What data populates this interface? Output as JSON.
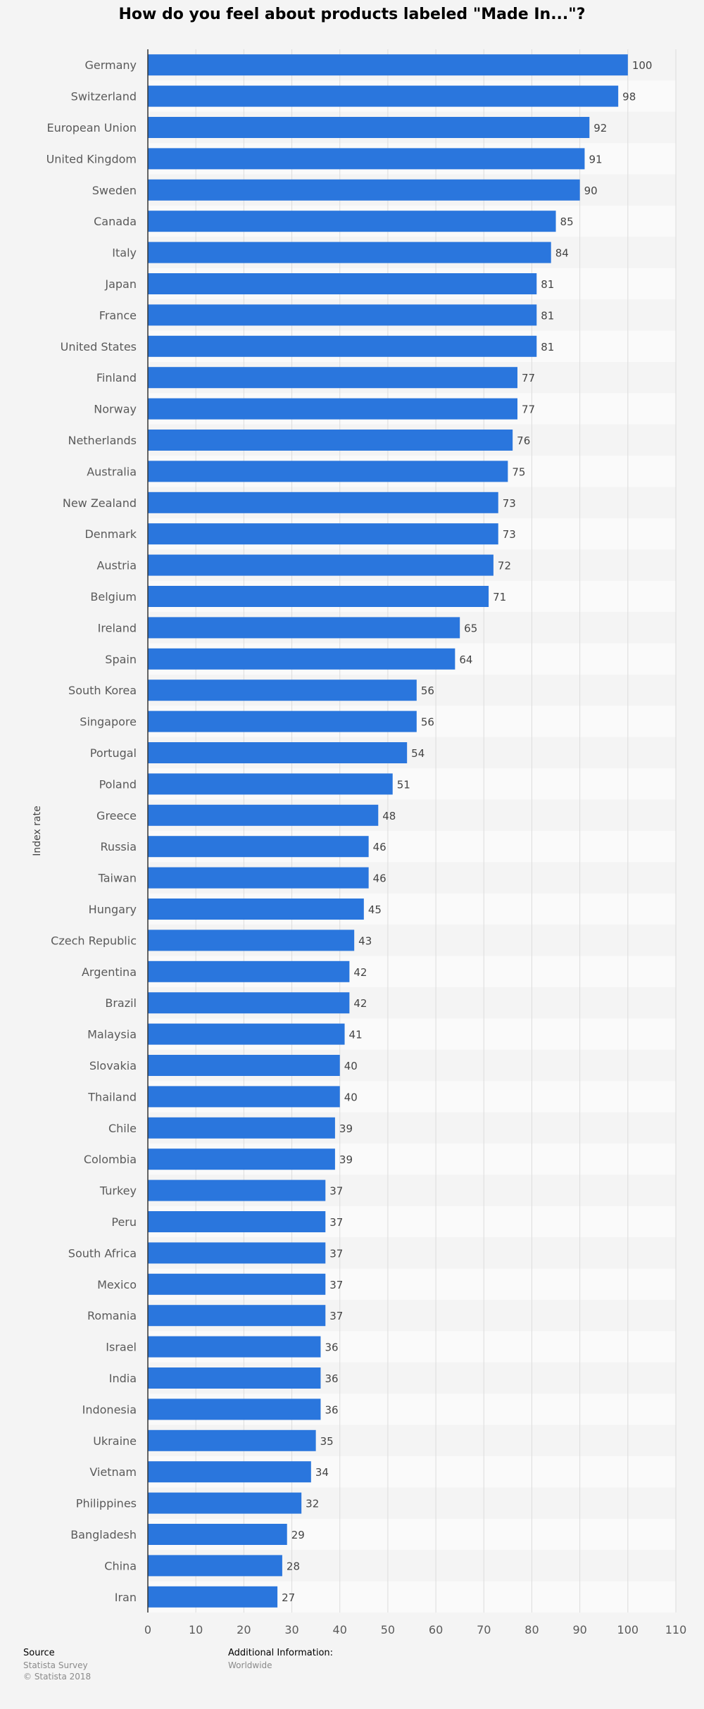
{
  "chart_data": {
    "type": "bar",
    "orientation": "horizontal",
    "title": "How do you feel about products labeled \"Made In...\"?",
    "xlabel": "",
    "ylabel": "Index rate",
    "xlim": [
      0,
      110
    ],
    "xticks": [
      0,
      10,
      20,
      30,
      40,
      50,
      60,
      70,
      80,
      90,
      100,
      110
    ],
    "grid": true,
    "bar_color": "#2a76dd",
    "categories": [
      "Germany",
      "Switzerland",
      "European Union",
      "United Kingdom",
      "Sweden",
      "Canada",
      "Italy",
      "Japan",
      "France",
      "United States",
      "Finland",
      "Norway",
      "Netherlands",
      "Australia",
      "New Zealand",
      "Denmark",
      "Austria",
      "Belgium",
      "Ireland",
      "Spain",
      "South Korea",
      "Singapore",
      "Portugal",
      "Poland",
      "Greece",
      "Russia",
      "Taiwan",
      "Hungary",
      "Czech Republic",
      "Argentina",
      "Brazil",
      "Malaysia",
      "Slovakia",
      "Thailand",
      "Chile",
      "Colombia",
      "Turkey",
      "Peru",
      "South Africa",
      "Mexico",
      "Romania",
      "Israel",
      "India",
      "Indonesia",
      "Ukraine",
      "Vietnam",
      "Philippines",
      "Bangladesh",
      "China",
      "Iran"
    ],
    "values": [
      100,
      98,
      92,
      91,
      90,
      85,
      84,
      81,
      81,
      81,
      77,
      77,
      76,
      75,
      73,
      73,
      72,
      71,
      65,
      64,
      56,
      56,
      54,
      51,
      48,
      46,
      46,
      45,
      43,
      42,
      42,
      41,
      40,
      40,
      39,
      39,
      37,
      37,
      37,
      37,
      37,
      36,
      36,
      36,
      35,
      34,
      32,
      29,
      28,
      27
    ]
  },
  "footer": {
    "source_title": "Source",
    "source_line1": "Statista Survey",
    "source_line2": "© Statista 2018",
    "info_title": "Additional Information:",
    "info_line1": "Worldwide"
  }
}
